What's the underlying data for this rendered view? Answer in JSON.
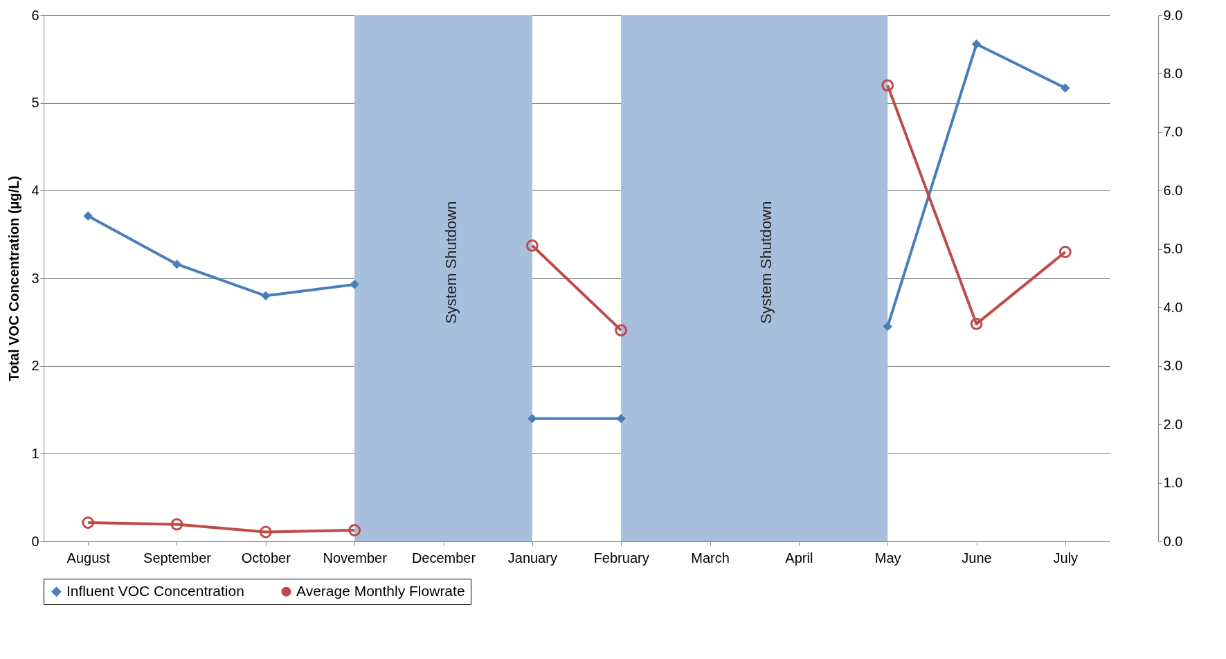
{
  "chart_data": {
    "type": "line",
    "ylabel": "Total VOC Concentration (µg/L)",
    "categories": [
      "August",
      "September",
      "October",
      "November",
      "December",
      "January",
      "February",
      "March",
      "April",
      "May",
      "June",
      "July"
    ],
    "series": [
      {
        "name": "Influent VOC Concentration",
        "color": "#4a7ebb",
        "marker": "diamond",
        "values": [
          3.71,
          3.16,
          2.8,
          2.93,
          null,
          1.4,
          1.4,
          null,
          null,
          2.45,
          5.67,
          5.17
        ]
      },
      {
        "name": "Average Monthly Flowrate",
        "color": "#be4b48",
        "marker": "circle",
        "axis": "y2",
        "values": [
          0.32,
          0.29,
          0.16,
          0.19,
          null,
          5.06,
          3.61,
          null,
          null,
          7.8,
          3.72,
          4.95
        ]
      }
    ],
    "ylim": [
      0,
      6
    ],
    "yticks": [
      0,
      1,
      2,
      3,
      4,
      5,
      6
    ],
    "y2lim": [
      0,
      9
    ],
    "y2ticks": [
      {
        "value": 0,
        "label": "0.0"
      },
      {
        "value": 1,
        "label": "1.0"
      },
      {
        "value": 2,
        "label": "2.0"
      },
      {
        "value": 3,
        "label": "3.0"
      },
      {
        "value": 4,
        "label": "4.0"
      },
      {
        "value": 5,
        "label": "5.0"
      },
      {
        "value": 6,
        "label": "6.0"
      },
      {
        "value": 7,
        "label": "7.0"
      },
      {
        "value": 8,
        "label": "8.0"
      },
      {
        "value": 9,
        "label": "9.0"
      }
    ],
    "bands": [
      {
        "axis": "x",
        "from": "November",
        "to": "January",
        "label": "System Shutdown",
        "color": "#a7bfdd"
      },
      {
        "axis": "x",
        "from": "February",
        "to": "May",
        "label": "System Shutdown",
        "color": "#a7bfdd"
      }
    ],
    "grid": "y",
    "legend": "bottom",
    "line_style": "solid"
  }
}
